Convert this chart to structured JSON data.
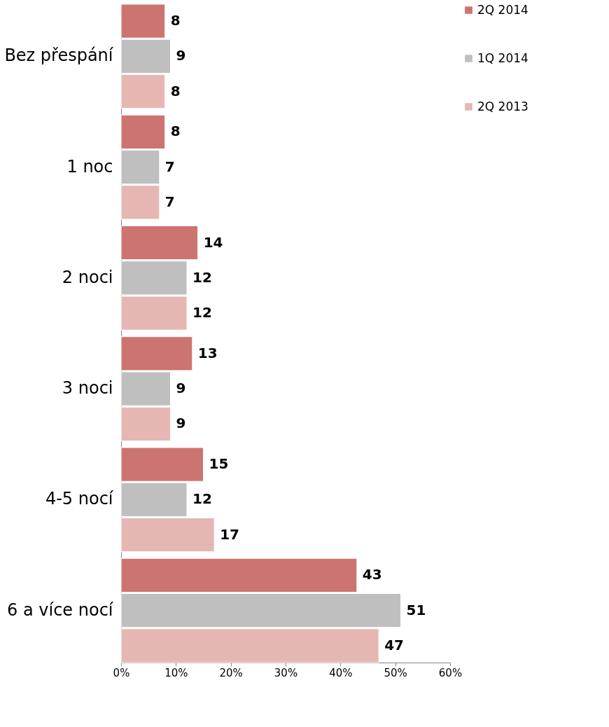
{
  "chart_data": {
    "type": "bar",
    "orientation": "horizontal",
    "categories": [
      "Bez přespání",
      "1 noc",
      "2 noci",
      "3 noci",
      "4-5 nocí",
      "6 a více nocí"
    ],
    "series": [
      {
        "name": "2Q 2014",
        "color": "#cc7470",
        "values": [
          8,
          8,
          14,
          13,
          15,
          43
        ]
      },
      {
        "name": "1Q 2014",
        "color": "#bfbfbf",
        "values": [
          9,
          7,
          12,
          9,
          12,
          51
        ]
      },
      {
        "name": "2Q 2013",
        "color": "#e6b7b2",
        "values": [
          8,
          7,
          12,
          9,
          17,
          47
        ]
      }
    ],
    "xlim": [
      0,
      60
    ],
    "xticks": [
      {
        "value": 0,
        "label": "0%"
      },
      {
        "value": 10,
        "label": "10%"
      },
      {
        "value": 20,
        "label": "20%"
      },
      {
        "value": 30,
        "label": "30%"
      },
      {
        "value": 40,
        "label": "40%"
      },
      {
        "value": 50,
        "label": "50%"
      },
      {
        "value": 60,
        "label": "60%"
      }
    ],
    "data_labels": true,
    "legend": "right",
    "grid": false
  }
}
